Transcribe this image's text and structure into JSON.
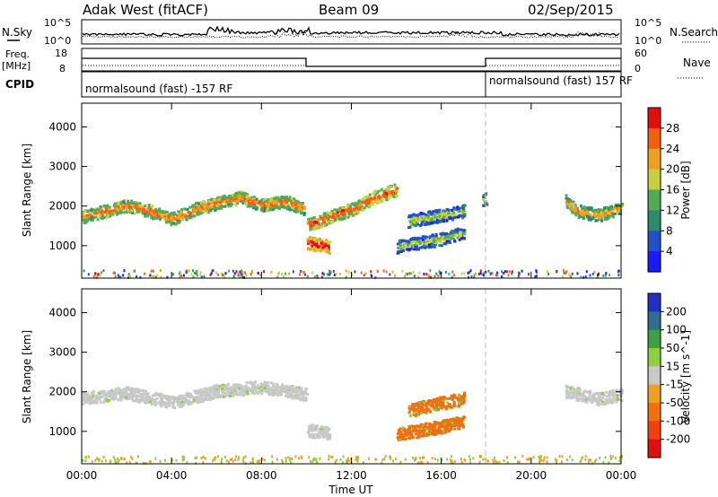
{
  "header": {
    "title_left": "Adak West (fitACF)",
    "title_center": "Beam 09",
    "title_right": "02/Sep/2015"
  },
  "strip_labels": {
    "nsky": "N.Sky",
    "nsearch": "N.Search",
    "freq": "Freq.",
    "freq_unit": "[MHz]",
    "nave": "Nave",
    "cpid": "CPID"
  },
  "strip_ticks": {
    "nsky_top": "10^5",
    "nsky_bottom": "10^0",
    "nsearch_top": "10^5",
    "nsearch_bottom": "10^0",
    "freq_top": "18",
    "freq_bottom": "8",
    "nave_top": "60",
    "nave_bottom": "0"
  },
  "cpid_labels": [
    "normalsound (fast) -157 RF",
    "normalsound (fast) 157 RF"
  ],
  "chart_data": [
    {
      "type": "heatmap",
      "title": "",
      "xlabel": "",
      "ylabel": "Slant Range [km]",
      "colorbar_label": "Power [dB]",
      "xlim": [
        0,
        24
      ],
      "ylim": [
        180,
        4600
      ],
      "x_ticks": [
        "00:00",
        "04:00",
        "08:00",
        "12:00",
        "16:00",
        "20:00",
        "00:00"
      ],
      "y_ticks": [
        "1000",
        "2000",
        "3000",
        "4000"
      ],
      "colorbar_ticks": [
        "4",
        "8",
        "12",
        "16",
        "20",
        "24",
        "28"
      ],
      "colorbar_colors": [
        "#1a1aff",
        "#2050c8",
        "#2e8b6e",
        "#55aa55",
        "#c8d040",
        "#f0a020",
        "#f06010",
        "#e01010"
      ],
      "series": [
        {
          "x": [
            0.0,
            1.0,
            2.0,
            3.0,
            4.0,
            5.0,
            6.0,
            7.0,
            8.0,
            9.0,
            9.9
          ],
          "y": [
            1700,
            1850,
            2000,
            1850,
            1650,
            1900,
            2050,
            2200,
            2000,
            2100,
            1900
          ],
          "level": 18
        },
        {
          "x": [
            10.0,
            11.0,
            12.0,
            13.0,
            14.0
          ],
          "y": [
            1500,
            1700,
            1900,
            2200,
            2400
          ],
          "level": 20
        },
        {
          "x": [
            10.0,
            11.0
          ],
          "y": [
            1050,
            950
          ],
          "level": 24
        },
        {
          "x": [
            14.5,
            15.5,
            16.5,
            17.0
          ],
          "y": [
            1600,
            1700,
            1800,
            1850
          ],
          "level": 10
        },
        {
          "x": [
            14.0,
            15.0,
            16.0,
            17.0
          ],
          "y": [
            950,
            1050,
            1150,
            1300
          ],
          "level": 10
        },
        {
          "x": [
            17.8,
            18.0
          ],
          "y": [
            2150,
            2150
          ],
          "level": 12
        },
        {
          "x": [
            21.5,
            22.0,
            23.0,
            24.0
          ],
          "y": [
            2100,
            1850,
            1750,
            1950
          ],
          "level": 16
        }
      ]
    },
    {
      "type": "heatmap",
      "title": "",
      "xlabel": "Time UT",
      "ylabel": "Slant Range [km]",
      "colorbar_label": "Velocity [m s^-1]",
      "xlim": [
        0,
        24
      ],
      "ylim": [
        180,
        4600
      ],
      "x_ticks": [
        "00:00",
        "04:00",
        "08:00",
        "12:00",
        "16:00",
        "20:00",
        "00:00"
      ],
      "y_ticks": [
        "1000",
        "2000",
        "3000",
        "4000"
      ],
      "colorbar_ticks": [
        "200",
        "100",
        "50",
        "15",
        "-15",
        "-50",
        "-100",
        "-200"
      ],
      "colorbar_colors": [
        "#2030c0",
        "#2e6e8e",
        "#3ea040",
        "#8cd040",
        "#c8c8c8",
        "#f0a020",
        "#f07010",
        "#f04010",
        "#e01010"
      ],
      "series": [
        {
          "x": [
            0.0,
            2.0,
            4.0,
            6.0,
            8.0,
            10.0
          ],
          "y": [
            1800,
            1950,
            1700,
            2000,
            2100,
            1900
          ],
          "velocity": 0
        },
        {
          "x": [
            10.0,
            11.0
          ],
          "y": [
            1000,
            950
          ],
          "velocity": 0
        },
        {
          "x": [
            14.5,
            16.0,
            17.0
          ],
          "y": [
            1500,
            1700,
            1800
          ],
          "velocity": -60
        },
        {
          "x": [
            14.0,
            16.0,
            17.0
          ],
          "y": [
            900,
            1100,
            1250
          ],
          "velocity": -60
        },
        {
          "x": [
            21.5,
            23.0,
            24.0
          ],
          "y": [
            2000,
            1800,
            1900
          ],
          "velocity": 0
        }
      ]
    }
  ]
}
